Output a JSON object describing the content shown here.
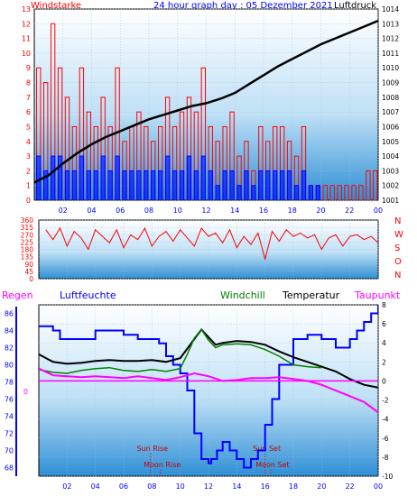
{
  "colors": {
    "frame": "#000000",
    "wind": "#ff0000",
    "gust": "#0000ff",
    "pressure": "#000000",
    "direction": "#ff0000",
    "humidity": "#0000ff",
    "windchill": "#008000",
    "temperature": "#000000",
    "dewpoint": "#ff00ff",
    "rain": "#ff00ff",
    "label_red": "#ff0000",
    "label_blue": "#0000ff"
  },
  "chart_data": [
    {
      "type": "bar",
      "title": "24 hour graph day : 05 Dezember 2021",
      "left_label": "Windstarke",
      "right_label": "Luftdruck",
      "x_ticks": [
        "02",
        "04",
        "06",
        "08",
        "10",
        "12",
        "14",
        "16",
        "18",
        "20",
        "22",
        "00"
      ],
      "ylim": [
        0,
        13
      ],
      "y_ticks": [
        "0",
        "1",
        "2",
        "3",
        "4",
        "5",
        "6",
        "7",
        "8",
        "9",
        "10",
        "11",
        "12",
        "13"
      ],
      "y2lim": [
        1001,
        1014
      ],
      "y2_ticks": [
        "1001",
        "1002",
        "1003",
        "1004",
        "1005",
        "1006",
        "1007",
        "1008",
        "1009",
        "1010",
        "1011",
        "1012",
        "1013",
        "1014"
      ],
      "series": [
        {
          "name": "wind",
          "x": [
            0.3,
            0.8,
            1.3,
            1.8,
            2.3,
            2.8,
            3.3,
            3.8,
            4.3,
            4.8,
            5.3,
            5.8,
            6.3,
            6.8,
            7.3,
            7.8,
            8.3,
            8.8,
            9.3,
            9.8,
            10.3,
            10.8,
            11.3,
            11.8,
            12.3,
            12.8,
            13.3,
            13.8,
            14.3,
            14.8,
            15.3,
            15.8,
            16.3,
            16.8,
            17.3,
            17.8,
            18.3,
            18.8,
            19.3,
            19.8,
            20.3,
            20.8,
            21.3,
            21.8,
            22.3,
            22.8,
            23.3,
            23.8
          ],
          "values": [
            9,
            8,
            12,
            9,
            7,
            5,
            9,
            6,
            5,
            7,
            5,
            9,
            4,
            5,
            6,
            5,
            4,
            5,
            7,
            5,
            6,
            7,
            6,
            9,
            5,
            4,
            5,
            6,
            3,
            4,
            2,
            5,
            4,
            5,
            5,
            4,
            3,
            5,
            1,
            1,
            1,
            1,
            1,
            1,
            1,
            1,
            2,
            2
          ]
        },
        {
          "name": "gust",
          "x": [
            0.3,
            0.8,
            1.3,
            1.8,
            2.3,
            2.8,
            3.3,
            3.8,
            4.3,
            4.8,
            5.3,
            5.8,
            6.3,
            6.8,
            7.3,
            7.8,
            8.3,
            8.8,
            9.3,
            9.8,
            10.3,
            10.8,
            11.3,
            11.8,
            12.3,
            12.8,
            13.3,
            13.8,
            14.3,
            14.8,
            15.3,
            15.8,
            16.3,
            16.8,
            17.3,
            17.8,
            18.3,
            18.8,
            19.3,
            19.8
          ],
          "values": [
            3,
            2,
            3,
            3,
            2,
            2,
            3,
            2,
            2,
            3,
            2,
            3,
            2,
            2,
            2,
            2,
            2,
            2,
            3,
            2,
            2,
            3,
            2,
            3,
            2,
            1,
            2,
            2,
            1,
            2,
            1,
            2,
            2,
            2,
            2,
            2,
            1,
            2,
            1,
            1
          ]
        },
        {
          "name": "pressure",
          "x": [
            0,
            1,
            2,
            3,
            4,
            5,
            6,
            7,
            8,
            9,
            10,
            11,
            12,
            13,
            14,
            15,
            16,
            17,
            18,
            19,
            20,
            21,
            22,
            23,
            24
          ],
          "values": [
            1002.2,
            1002.7,
            1003.5,
            1004.2,
            1004.8,
            1005.3,
            1005.7,
            1006.1,
            1006.5,
            1006.8,
            1007.1,
            1007.4,
            1007.6,
            1007.9,
            1008.3,
            1008.9,
            1009.5,
            1010.1,
            1010.6,
            1011.1,
            1011.6,
            1012.0,
            1012.4,
            1012.8,
            1013.2
          ]
        }
      ]
    },
    {
      "type": "line",
      "title": "",
      "ylim": [
        0,
        360
      ],
      "y_ticks": [
        "0",
        "45",
        "90",
        "135",
        "180",
        "225",
        "270",
        "315",
        "360"
      ],
      "right_letters": [
        "N",
        "W",
        "S",
        "O",
        "N"
      ],
      "series": [
        {
          "name": "direction",
          "x": [
            0.5,
            1,
            1.5,
            2,
            2.5,
            3,
            3.5,
            4,
            4.5,
            5,
            5.5,
            6,
            6.5,
            7,
            7.5,
            8,
            8.5,
            9,
            9.5,
            10,
            10.5,
            11,
            11.5,
            12,
            12.5,
            13,
            13.5,
            14,
            14.5,
            15,
            15.5,
            16,
            16.5,
            17,
            17.5,
            18,
            18.5,
            19,
            19.5,
            20,
            20.5,
            21,
            21.5,
            22,
            22.5,
            23,
            23.5,
            24
          ],
          "values": [
            300,
            240,
            310,
            200,
            290,
            250,
            180,
            300,
            260,
            220,
            300,
            190,
            270,
            240,
            310,
            200,
            260,
            290,
            230,
            300,
            250,
            200,
            310,
            260,
            280,
            220,
            300,
            190,
            260,
            210,
            280,
            120,
            290,
            230,
            300,
            260,
            280,
            250,
            270,
            180,
            250,
            270,
            200,
            260,
            270,
            240,
            260,
            220
          ]
        }
      ]
    },
    {
      "type": "line",
      "title": "",
      "header": {
        "rain": "Regen",
        "humidity": "Luftfeuchte",
        "windchill": "Windchill",
        "temperature": "Temperatur",
        "dewpoint": "Taupunkt"
      },
      "x_ticks": [
        "02",
        "04",
        "06",
        "08",
        "10",
        "12",
        "14",
        "16",
        "18",
        "20",
        "22",
        "00"
      ],
      "ylim": [
        67,
        87
      ],
      "y_ticks": [
        "68",
        "70",
        "72",
        "74",
        "76",
        "78",
        "80",
        "82",
        "84",
        "86"
      ],
      "y2lim": [
        -10,
        8
      ],
      "y2_ticks": [
        "-10",
        "-8",
        "-6",
        "-4",
        "-2",
        "0",
        "2",
        "4",
        "6",
        "8"
      ],
      "rain_zero_label": "0",
      "events": [
        {
          "label": "Sun Rise",
          "x": 7.9
        },
        {
          "label": "Moon Rise",
          "x": 8.6
        },
        {
          "label": "Sun Set",
          "x": 16.0
        },
        {
          "label": "Moon Set",
          "x": 16.4
        }
      ],
      "series": [
        {
          "name": "humidity",
          "x": [
            0,
            1,
            1.5,
            3,
            4,
            5,
            6,
            7,
            8,
            8.5,
            9,
            9.5,
            10,
            10.5,
            11,
            11.5,
            12,
            12.2,
            12.6,
            13,
            13.5,
            14,
            14.5,
            15,
            15.5,
            16,
            16.5,
            17,
            18,
            19,
            20,
            21,
            22,
            22.5,
            23,
            23.5,
            24
          ],
          "values": [
            84.5,
            84,
            83,
            83,
            84,
            84,
            83.5,
            83,
            83,
            82.5,
            81,
            80,
            79,
            77,
            72,
            69,
            68.5,
            69,
            70,
            71,
            70,
            69,
            68,
            69,
            70,
            73,
            76,
            80,
            83,
            83.5,
            83,
            82,
            83,
            84,
            85,
            86,
            87
          ]
        },
        {
          "name": "temperature",
          "x": [
            0,
            1,
            2,
            3,
            4,
            5,
            6,
            7,
            8,
            9,
            10,
            10.5,
            11,
            11.5,
            12,
            12.5,
            13,
            14,
            15,
            16,
            17,
            18,
            19,
            20,
            21,
            22,
            23,
            24
          ],
          "values": [
            2.8,
            2,
            1.8,
            1.9,
            2.1,
            2.2,
            2.1,
            2.1,
            2.2,
            2,
            2.4,
            3.4,
            4.4,
            5.4,
            4.6,
            3.8,
            4,
            4.2,
            4.1,
            3.8,
            3.1,
            2.5,
            2,
            1.5,
            1,
            0.2,
            -0.4,
            -0.7
          ]
        },
        {
          "name": "windchill",
          "x": [
            0,
            1,
            2,
            3,
            4,
            5,
            6,
            7,
            8,
            9,
            10,
            10.5,
            11,
            11.5,
            12,
            12.5,
            13,
            14,
            15,
            16,
            17,
            18,
            19,
            20
          ],
          "values": [
            1.2,
            0.9,
            0.8,
            1.1,
            1.3,
            1.4,
            1.1,
            1.0,
            1.2,
            1.0,
            1.3,
            2.8,
            4.5,
            5.4,
            4.3,
            3.5,
            3.8,
            3.9,
            3.8,
            3.3,
            2.6,
            1.7,
            1.5,
            1.4
          ]
        },
        {
          "name": "dewpoint",
          "x": [
            0,
            1,
            2,
            3,
            4,
            5,
            6,
            7,
            8,
            9,
            10,
            11,
            12,
            13,
            14,
            15,
            16,
            17,
            18,
            19,
            20,
            21,
            22,
            23,
            24
          ],
          "values": [
            1.3,
            0.6,
            0.5,
            0.4,
            0.5,
            0.4,
            0.3,
            0.5,
            0.3,
            0.1,
            0.4,
            0.8,
            0.5,
            0,
            0.1,
            0.3,
            0.3,
            0.4,
            0.2,
            0,
            -0.4,
            -1,
            -1.6,
            -2.2,
            -3.3
          ]
        },
        {
          "name": "rain",
          "x": [
            0,
            24
          ],
          "values": [
            0,
            0
          ]
        }
      ]
    }
  ]
}
